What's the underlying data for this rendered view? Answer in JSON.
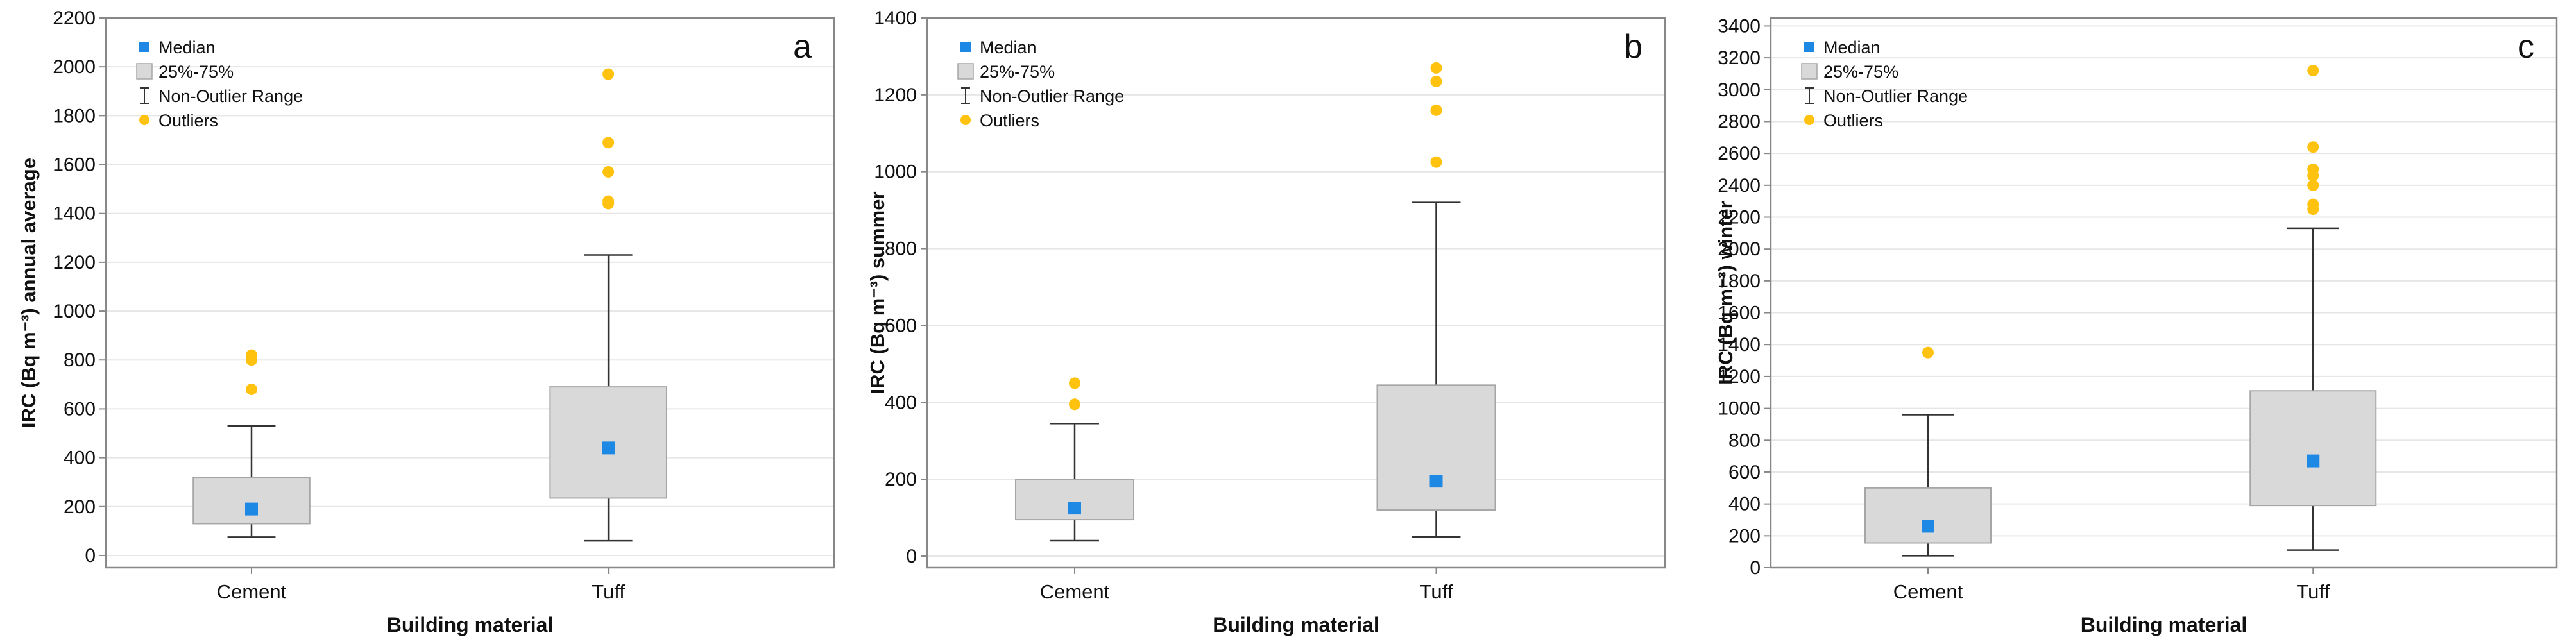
{
  "colors": {
    "median": "#1e88e5",
    "box_fill": "#d9d9d9",
    "box_stroke": "#a6a6a6",
    "outlier": "#ffc20e",
    "whisker": "#333333",
    "frame": "#888888",
    "grid": "#e6e6e6",
    "text": "#111111"
  },
  "legend_labels": {
    "median": "Median",
    "box": "25%-75%",
    "range": "Non-Outlier Range",
    "outliers": "Outliers"
  },
  "chart_data": [
    {
      "type": "box",
      "panel_label": "a",
      "title": "",
      "xlabel": "Building material",
      "ylabel": "IRC (Bq m⁻³) annual average",
      "ylim": [
        -50,
        2200
      ],
      "yticks": [
        "0",
        "200",
        "400",
        "600",
        "800",
        "1000",
        "1200",
        "1400",
        "1600",
        "1800",
        "2000",
        "2200"
      ],
      "categories": [
        "Cement",
        "Tuff"
      ],
      "boxes": [
        {
          "category": "Cement",
          "median": 190,
          "q1": 130,
          "q3": 320,
          "whisker_low": 75,
          "whisker_high": 530,
          "outliers": [
            680,
            800,
            820
          ]
        },
        {
          "category": "Tuff",
          "median": 440,
          "q1": 235,
          "q3": 690,
          "whisker_low": 60,
          "whisker_high": 1230,
          "outliers": [
            1440,
            1450,
            1570,
            1690,
            1970
          ]
        }
      ],
      "legend_position": "top-left",
      "grid": true
    },
    {
      "type": "box",
      "panel_label": "b",
      "title": "",
      "xlabel": "Building material",
      "ylabel": "IRC (Bq m⁻³) summer",
      "ylim": [
        -30,
        1400
      ],
      "yticks": [
        "0",
        "200",
        "400",
        "600",
        "800",
        "1000",
        "1200",
        "1400"
      ],
      "categories": [
        "Cement",
        "Tuff"
      ],
      "boxes": [
        {
          "category": "Cement",
          "median": 125,
          "q1": 95,
          "q3": 200,
          "whisker_low": 40,
          "whisker_high": 345,
          "outliers": [
            395,
            450
          ]
        },
        {
          "category": "Tuff",
          "median": 195,
          "q1": 120,
          "q3": 445,
          "whisker_low": 50,
          "whisker_high": 920,
          "outliers": [
            1025,
            1160,
            1235,
            1270
          ]
        }
      ],
      "legend_position": "top-left",
      "grid": true
    },
    {
      "type": "box",
      "panel_label": "c",
      "title": "",
      "xlabel": "Building material",
      "ylabel": "IRC (Bq m⁻³) winter",
      "ylim": [
        0,
        3450
      ],
      "yticks": [
        "0",
        "200",
        "400",
        "600",
        "800",
        "1000",
        "1200",
        "1400",
        "1600",
        "1800",
        "2000",
        "2200",
        "2400",
        "2600",
        "2800",
        "3000",
        "3200",
        "3400"
      ],
      "categories": [
        "Cement",
        "Tuff"
      ],
      "boxes": [
        {
          "category": "Cement",
          "median": 260,
          "q1": 155,
          "q3": 500,
          "whisker_low": 75,
          "whisker_high": 960,
          "outliers": [
            1350
          ]
        },
        {
          "category": "Tuff",
          "median": 670,
          "q1": 390,
          "q3": 1110,
          "whisker_low": 110,
          "whisker_high": 2130,
          "outliers": [
            2250,
            2280,
            2400,
            2460,
            2500,
            2640,
            3120
          ]
        }
      ],
      "legend_position": "top-left",
      "grid": true
    }
  ]
}
